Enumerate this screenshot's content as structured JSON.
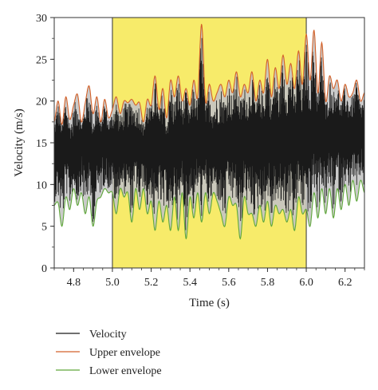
{
  "chart_data": {
    "type": "line",
    "xlabel": "Time (s)",
    "ylabel": "Velocity (m/s)",
    "xlim": [
      4.7,
      6.3
    ],
    "ylim": [
      0,
      30
    ],
    "xticks": [
      "4.8",
      "5.0",
      "5.2",
      "5.4",
      "5.6",
      "5.8",
      "6.0",
      "6.2"
    ],
    "yticks": [
      "0",
      "5",
      "10",
      "15",
      "20",
      "25",
      "30"
    ],
    "highlight_region": {
      "x": [
        5.0,
        6.0
      ],
      "color": "#f7eb6a"
    },
    "legend_position": "below",
    "series": [
      {
        "name": "Velocity",
        "color": "#1a1a1a",
        "description_mean": 15,
        "x": [
          4.7,
          4.75,
          4.8,
          4.85,
          4.9,
          4.95,
          5.0,
          5.05,
          5.1,
          5.15,
          5.2,
          5.25,
          5.3,
          5.35,
          5.4,
          5.45,
          5.5,
          5.55,
          5.6,
          5.65,
          5.7,
          5.75,
          5.8,
          5.85,
          5.9,
          5.95,
          6.0,
          6.05,
          6.1,
          6.15,
          6.2,
          6.25,
          6.3
        ],
        "y": [
          14.5,
          15.5,
          13.8,
          16.0,
          14.2,
          15.8,
          15.0,
          14.6,
          15.4,
          14.8,
          15.2,
          15.0,
          14.4,
          15.6,
          15.2,
          16.0,
          15.0,
          14.8,
          15.6,
          15.2,
          15.8,
          15.4,
          16.0,
          15.6,
          16.2,
          15.8,
          16.2,
          16.6,
          16.0,
          16.8,
          16.4,
          16.2,
          16.6
        ]
      },
      {
        "name": "Upper envelope",
        "color": "#d4622a",
        "x": [
          4.7,
          4.72,
          4.74,
          4.76,
          4.78,
          4.8,
          4.82,
          4.84,
          4.86,
          4.88,
          4.9,
          4.92,
          4.94,
          4.96,
          4.98,
          5.0,
          5.02,
          5.04,
          5.06,
          5.08,
          5.1,
          5.12,
          5.14,
          5.16,
          5.18,
          5.2,
          5.22,
          5.24,
          5.26,
          5.28,
          5.3,
          5.32,
          5.34,
          5.36,
          5.38,
          5.4,
          5.42,
          5.44,
          5.46,
          5.48,
          5.5,
          5.52,
          5.54,
          5.56,
          5.58,
          5.6,
          5.62,
          5.64,
          5.66,
          5.68,
          5.7,
          5.72,
          5.74,
          5.76,
          5.78,
          5.8,
          5.82,
          5.84,
          5.86,
          5.88,
          5.9,
          5.92,
          5.94,
          5.96,
          5.98,
          6.0,
          6.02,
          6.04,
          6.06,
          6.08,
          6.1,
          6.12,
          6.14,
          6.16,
          6.18,
          6.2,
          6.22,
          6.24,
          6.26,
          6.28,
          6.3
        ],
        "y": [
          17.5,
          20.0,
          17.2,
          20.5,
          17.8,
          19.5,
          20.8,
          17.5,
          19.8,
          21.8,
          18.5,
          20.5,
          17.5,
          20.2,
          18.0,
          19.0,
          20.5,
          18.5,
          20.0,
          19.8,
          20.2,
          19.5,
          19.8,
          17.5,
          20.2,
          19.5,
          23.0,
          19.0,
          21.5,
          18.0,
          22.5,
          20.5,
          23.0,
          20.0,
          21.5,
          19.5,
          22.5,
          20.5,
          29.2,
          20.0,
          22.0,
          20.0,
          21.0,
          22.0,
          20.5,
          22.5,
          21.0,
          23.5,
          20.5,
          22.0,
          21.0,
          23.5,
          20.0,
          22.5,
          21.0,
          25.0,
          20.5,
          24.0,
          21.5,
          25.5,
          22.0,
          24.5,
          21.5,
          26.0,
          22.0,
          28.0,
          22.5,
          28.5,
          21.0,
          27.0,
          20.0,
          23.0,
          21.5,
          22.5,
          20.0,
          22.0,
          20.5,
          21.0,
          22.5,
          20.0,
          21.0
        ]
      },
      {
        "name": "Lower envelope",
        "color": "#5fa83a",
        "x": [
          4.7,
          4.72,
          4.74,
          4.76,
          4.78,
          4.8,
          4.82,
          4.84,
          4.86,
          4.88,
          4.9,
          4.92,
          4.94,
          4.96,
          4.98,
          5.0,
          5.02,
          5.04,
          5.06,
          5.08,
          5.1,
          5.12,
          5.14,
          5.16,
          5.18,
          5.2,
          5.22,
          5.24,
          5.26,
          5.28,
          5.3,
          5.32,
          5.34,
          5.36,
          5.38,
          5.4,
          5.42,
          5.44,
          5.46,
          5.48,
          5.5,
          5.52,
          5.54,
          5.56,
          5.58,
          5.6,
          5.62,
          5.64,
          5.66,
          5.68,
          5.7,
          5.72,
          5.74,
          5.76,
          5.78,
          5.8,
          5.82,
          5.84,
          5.86,
          5.88,
          5.9,
          5.92,
          5.94,
          5.96,
          5.98,
          6.0,
          6.02,
          6.04,
          6.06,
          6.08,
          6.1,
          6.12,
          6.14,
          6.16,
          6.18,
          6.2,
          6.22,
          6.24,
          6.26,
          6.28,
          6.3
        ],
        "y": [
          7.5,
          7.8,
          5.0,
          8.5,
          7.0,
          9.5,
          7.5,
          9.0,
          6.5,
          8.5,
          5.0,
          8.0,
          8.5,
          9.5,
          9.0,
          9.0,
          6.5,
          9.5,
          8.5,
          9.0,
          5.5,
          9.5,
          7.0,
          9.5,
          6.5,
          8.0,
          4.5,
          8.0,
          5.5,
          7.5,
          4.5,
          8.5,
          4.5,
          9.0,
          3.5,
          8.5,
          6.0,
          9.0,
          5.5,
          9.0,
          6.5,
          9.0,
          8.0,
          6.5,
          5.0,
          8.5,
          7.5,
          7.5,
          3.5,
          8.5,
          6.5,
          6.5,
          5.0,
          7.5,
          5.5,
          8.0,
          5.0,
          7.5,
          6.5,
          7.0,
          5.5,
          7.0,
          4.5,
          8.5,
          6.5,
          7.0,
          5.0,
          9.0,
          6.0,
          9.5,
          6.5,
          9.5,
          6.0,
          9.5,
          7.0,
          10.0,
          7.5,
          10.5,
          8.0,
          10.5,
          9.0
        ]
      }
    ]
  }
}
